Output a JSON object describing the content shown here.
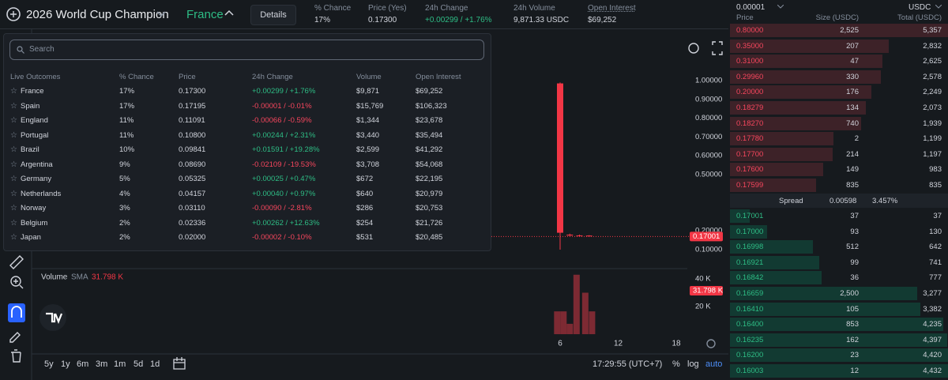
{
  "header": {
    "market": "2026 World Cup Champion",
    "outcome": "France",
    "details_button": "Details",
    "stats": [
      {
        "label": "% Chance",
        "value": "17%"
      },
      {
        "label": "Price (Yes)",
        "value": "0.17300"
      },
      {
        "label": "24h Change",
        "value": "+0.00299 / +1.76%"
      },
      {
        "label": "24h Volume",
        "value": "9,871.33 USDC"
      },
      {
        "label": "Open Interest",
        "value": "$69,252"
      }
    ]
  },
  "outcomes_dropdown": {
    "search_placeholder": "Search",
    "columns": [
      "Live Outcomes",
      "% Chance",
      "Price",
      "24h Change",
      "Volume",
      "Open Interest"
    ],
    "rows": [
      [
        "France",
        "17%",
        "0.17300",
        "+0.00299 / +1.76%",
        "$9,871",
        "$69,252"
      ],
      [
        "Spain",
        "17%",
        "0.17195",
        "-0.00001 / -0.01%",
        "$15,769",
        "$106,323"
      ],
      [
        "England",
        "11%",
        "0.11091",
        "-0.00066 / -0.59%",
        "$1,344",
        "$23,678"
      ],
      [
        "Portugal",
        "11%",
        "0.10800",
        "+0.00244 / +2.31%",
        "$3,440",
        "$35,494"
      ],
      [
        "Brazil",
        "10%",
        "0.09841",
        "+0.01591 / +19.28%",
        "$2,599",
        "$41,292"
      ],
      [
        "Argentina",
        "9%",
        "0.08690",
        "-0.02109 / -19.53%",
        "$3,708",
        "$54,068"
      ],
      [
        "Germany",
        "5%",
        "0.05325",
        "+0.00025 / +0.47%",
        "$672",
        "$22,195"
      ],
      [
        "Netherlands",
        "4%",
        "0.04157",
        "+0.00040 / +0.97%",
        "$640",
        "$20,979"
      ],
      [
        "Norway",
        "3%",
        "0.03110",
        "-0.00090 / -2.81%",
        "$286",
        "$20,753"
      ],
      [
        "Belgium",
        "2%",
        "0.02336",
        "+0.00262 / +12.63%",
        "$254",
        "$21,726"
      ],
      [
        "Japan",
        "2%",
        "0.02000",
        "-0.00002 / -0.10%",
        "$531",
        "$20,485"
      ]
    ]
  },
  "chart": {
    "yticks": [
      {
        "value": 1,
        "label": "1.00000"
      },
      {
        "value": 0.9,
        "label": "0.90000"
      },
      {
        "value": 0.8,
        "label": "0.80000"
      },
      {
        "value": 0.7,
        "label": "0.70000"
      },
      {
        "value": 0.6,
        "label": "0.60000"
      },
      {
        "value": 0.5,
        "label": "0.50000"
      },
      {
        "value": 0.2,
        "label": "0.20000"
      },
      {
        "value": 0.1,
        "label": "0.10000"
      }
    ],
    "last_price": {
      "value": 0.17001,
      "label": "0.17001"
    },
    "xticks": [
      6,
      12,
      18
    ],
    "candles": [
      {
        "t": 6,
        "open": 0.985,
        "high": 0.99,
        "low": 0.1,
        "close": 0.19
      },
      {
        "t": 7,
        "open": 0.18,
        "high": 0.185,
        "low": 0.172,
        "close": 0.175
      },
      {
        "t": 8,
        "open": 0.176,
        "high": 0.18,
        "low": 0.172,
        "close": 0.174
      },
      {
        "t": 9,
        "open": 0.175,
        "high": 0.177,
        "low": 0.17,
        "close": 0.172
      }
    ],
    "volume_label": "Volume",
    "sma_label": "SMA",
    "sma_value": "31.798 K",
    "volume_yticks": [
      {
        "value": 40,
        "label": "40 K"
      },
      {
        "value": 20,
        "label": "20 K"
      }
    ],
    "volume": {
      "t": [
        5.7,
        6.35,
        7,
        7.7,
        8.6,
        9.3
      ],
      "values": [
        16.5,
        16.5,
        7.5,
        43,
        30,
        16.5
      ]
    },
    "timeframes": [
      "5y",
      "1y",
      "6m",
      "3m",
      "1m",
      "5d",
      "1d"
    ],
    "clock": "17:29:55 (UTC+7)",
    "percent_toggle": "%",
    "log_toggle": "log",
    "auto_toggle": "auto"
  },
  "order_book": {
    "tick_size": "0.00001",
    "currency": "USDC",
    "columns": [
      "Price",
      "Size (USDC)",
      "Total (USDC)"
    ],
    "asks": [
      [
        "0.80000",
        "2,525",
        "5,357"
      ],
      [
        "0.35000",
        "207",
        "2,832"
      ],
      [
        "0.31000",
        "47",
        "2,625"
      ],
      [
        "0.29960",
        "330",
        "2,578"
      ],
      [
        "0.20000",
        "176",
        "2,249"
      ],
      [
        "0.18279",
        "134",
        "2,073"
      ],
      [
        "0.18270",
        "740",
        "1,939"
      ],
      [
        "0.17780",
        "2",
        "1,199"
      ],
      [
        "0.17700",
        "214",
        "1,197"
      ],
      [
        "0.17600",
        "149",
        "983"
      ],
      [
        "0.17599",
        "835",
        "835"
      ]
    ],
    "spread": {
      "label": "Spread",
      "value": "0.00598",
      "percent": "3.457%"
    },
    "bids": [
      [
        "0.17001",
        "37",
        "37"
      ],
      [
        "0.17000",
        "93",
        "130"
      ],
      [
        "0.16998",
        "512",
        "642"
      ],
      [
        "0.16921",
        "99",
        "741"
      ],
      [
        "0.16842",
        "36",
        "777"
      ],
      [
        "0.16659",
        "2,500",
        "3,277"
      ],
      [
        "0.16410",
        "105",
        "3,382"
      ],
      [
        "0.16400",
        "853",
        "4,235"
      ],
      [
        "0.16235",
        "162",
        "4,397"
      ],
      [
        "0.16200",
        "23",
        "4,420"
      ],
      [
        "0.16003",
        "12",
        "4,432"
      ]
    ]
  }
}
